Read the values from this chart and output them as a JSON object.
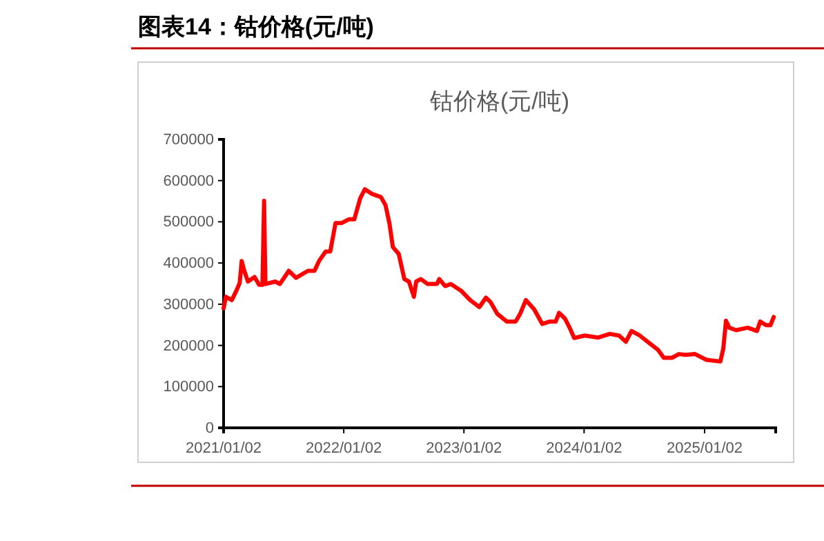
{
  "chart_data": {
    "type": "line",
    "title": "钴价格(元/吨)",
    "subtitle": "图表14：钴价格(元/吨)",
    "xlim": [
      "2021-01-02",
      "2025-08-06"
    ],
    "xticks": [
      {
        "value": "2021-01-02",
        "label": "2021/01/02"
      },
      {
        "value": "2022-01-02",
        "label": "2022/01/02"
      },
      {
        "value": "2023-01-02",
        "label": "2023/01/02"
      },
      {
        "value": "2024-01-02",
        "label": "2024/01/02"
      },
      {
        "value": "2025-01-02",
        "label": "2025/01/02"
      }
    ],
    "ylim": [
      0,
      700000
    ],
    "yticks": [
      0,
      100000,
      200000,
      300000,
      400000,
      500000,
      600000,
      700000
    ],
    "grid": false,
    "marker": "none",
    "line_style": "solid",
    "x": [
      "2021-01-02",
      "2021-01-09",
      "2021-01-27",
      "2021-02-10",
      "2021-02-20",
      "2021-02-26",
      "2021-03-05",
      "2021-03-17",
      "2021-04-06",
      "2021-04-20",
      "2021-04-30",
      "2021-05-05",
      "2021-05-09",
      "2021-06-08",
      "2021-06-22",
      "2021-07-19",
      "2021-08-10",
      "2021-09-15",
      "2021-10-05",
      "2021-10-19",
      "2021-11-08",
      "2021-11-22",
      "2021-12-08",
      "2021-12-27",
      "2022-01-17",
      "2022-02-03",
      "2022-02-21",
      "2022-03-07",
      "2022-03-28",
      "2022-04-25",
      "2022-05-09",
      "2022-05-21",
      "2022-05-31",
      "2022-06-18",
      "2022-07-05",
      "2022-07-19",
      "2022-08-03",
      "2022-08-10",
      "2022-08-24",
      "2022-09-14",
      "2022-10-12",
      "2022-10-19",
      "2022-11-06",
      "2022-11-23",
      "2022-12-24",
      "2023-01-21",
      "2023-02-18",
      "2023-03-10",
      "2023-03-24",
      "2023-04-13",
      "2023-05-12",
      "2023-06-08",
      "2023-06-22",
      "2023-07-09",
      "2023-08-03",
      "2023-08-28",
      "2023-09-20",
      "2023-10-08",
      "2023-10-18",
      "2023-11-05",
      "2023-11-19",
      "2023-12-03",
      "2024-01-04",
      "2024-02-14",
      "2024-03-20",
      "2024-04-17",
      "2024-05-08",
      "2024-05-25",
      "2024-06-19",
      "2024-07-24",
      "2024-08-14",
      "2024-08-31",
      "2024-09-25",
      "2024-10-16",
      "2024-11-06",
      "2024-12-04",
      "2025-01-08",
      "2025-02-19",
      "2025-02-28",
      "2025-03-08",
      "2025-03-18",
      "2025-04-08",
      "2025-05-13",
      "2025-06-10",
      "2025-06-20",
      "2025-07-08",
      "2025-07-21",
      "2025-07-31"
    ],
    "series": [
      {
        "color": "#ff0000",
        "values": [
          290000,
          318000,
          310000,
          333000,
          352000,
          405000,
          383000,
          355000,
          366000,
          347000,
          347000,
          551000,
          349000,
          355000,
          349000,
          381000,
          364000,
          381000,
          381000,
          405000,
          428000,
          428000,
          497000,
          497000,
          506000,
          506000,
          557000,
          579000,
          568000,
          560000,
          540000,
          495000,
          439000,
          422000,
          361000,
          355000,
          318000,
          355000,
          361000,
          349000,
          349000,
          361000,
          344000,
          349000,
          333000,
          310000,
          293000,
          316000,
          305000,
          277000,
          258000,
          258000,
          277000,
          310000,
          288000,
          252000,
          258000,
          258000,
          279000,
          265000,
          243000,
          218000,
          224000,
          219000,
          228000,
          224000,
          209000,
          235000,
          224000,
          202000,
          189000,
          170000,
          170000,
          179000,
          177000,
          179000,
          165000,
          161000,
          193000,
          260000,
          243000,
          237000,
          243000,
          235000,
          258000,
          249000,
          249000,
          269000
        ]
      }
    ]
  }
}
